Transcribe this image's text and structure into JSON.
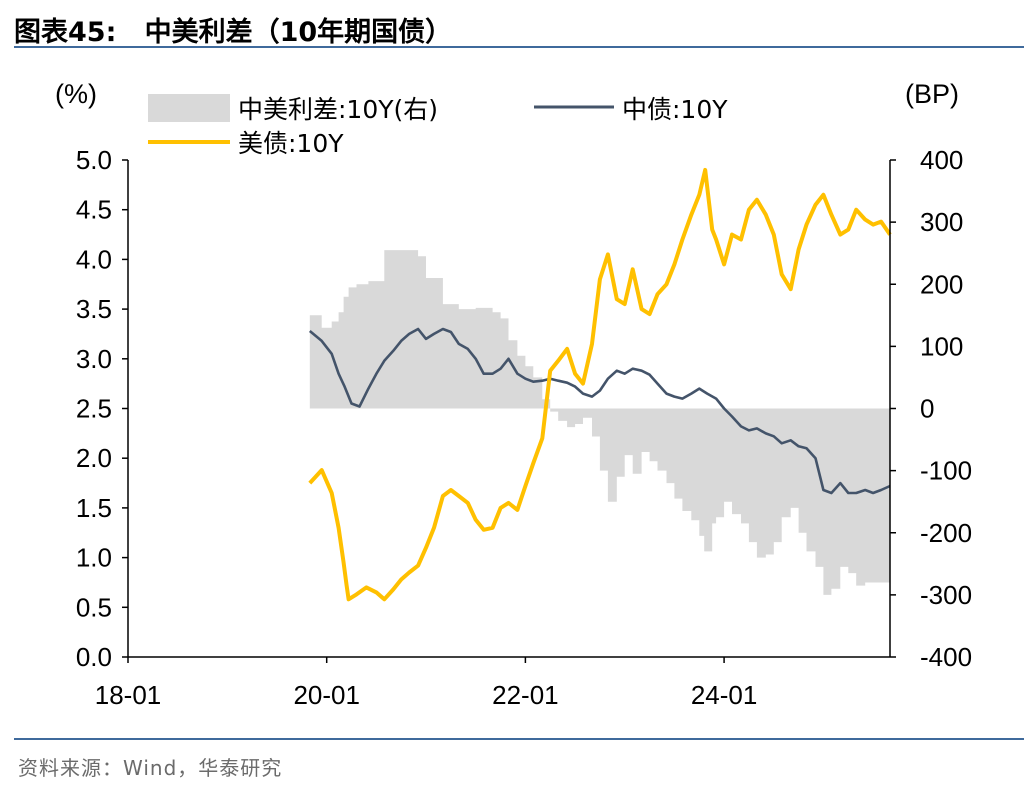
{
  "figure": {
    "title": "图表45:   中美利差（10年期国债）",
    "source": "资料来源：Wind，华泰研究"
  },
  "colors": {
    "spread_fill": "#d9d9d9",
    "cn_line": "#44546a",
    "us_line": "#ffc000",
    "rule": "#3f6a9c"
  },
  "chart_data": {
    "type": "line",
    "title": "中美利差（10年期国债）",
    "left_axis": {
      "unit_label": "(%)",
      "ylim": [
        0.0,
        5.0
      ],
      "ticks": [
        "5.0",
        "4.5",
        "4.0",
        "3.5",
        "3.0",
        "2.5",
        "2.0",
        "1.5",
        "1.0",
        "0.5",
        "0.0"
      ]
    },
    "right_axis": {
      "unit_label": "(BP)",
      "ylim": [
        -400,
        400
      ],
      "ticks": [
        "400",
        "300",
        "200",
        "100",
        "0",
        "-100",
        "-200",
        "-300",
        "-400"
      ]
    },
    "x_axis": {
      "range": [
        2018.0,
        2025.67
      ],
      "ticks": [
        {
          "label": "18-01",
          "x": 2018.0
        },
        {
          "label": "20-01",
          "x": 2020.0
        },
        {
          "label": "22-01",
          "x": 2022.0
        },
        {
          "label": "24-01",
          "x": 2024.0
        }
      ]
    },
    "legend": [
      {
        "label": "中美利差:10Y(右)",
        "kind": "area"
      },
      {
        "label": "中债:10Y",
        "kind": "line"
      },
      {
        "label": "美债:10Y",
        "kind": "line"
      }
    ],
    "series": [
      {
        "name": "中债:10Y",
        "axis": "left",
        "points": [
          [
            2019.83,
            3.28
          ],
          [
            2019.95,
            3.18
          ],
          [
            2020.05,
            3.05
          ],
          [
            2020.12,
            2.85
          ],
          [
            2020.18,
            2.72
          ],
          [
            2020.25,
            2.55
          ],
          [
            2020.33,
            2.52
          ],
          [
            2020.42,
            2.7
          ],
          [
            2020.5,
            2.85
          ],
          [
            2020.58,
            2.98
          ],
          [
            2020.67,
            3.08
          ],
          [
            2020.75,
            3.18
          ],
          [
            2020.83,
            3.25
          ],
          [
            2020.92,
            3.3
          ],
          [
            2021.0,
            3.2
          ],
          [
            2021.08,
            3.25
          ],
          [
            2021.17,
            3.3
          ],
          [
            2021.25,
            3.27
          ],
          [
            2021.33,
            3.15
          ],
          [
            2021.42,
            3.1
          ],
          [
            2021.5,
            3.0
          ],
          [
            2021.58,
            2.85
          ],
          [
            2021.67,
            2.85
          ],
          [
            2021.75,
            2.9
          ],
          [
            2021.83,
            3.0
          ],
          [
            2021.92,
            2.85
          ],
          [
            2022.0,
            2.8
          ],
          [
            2022.08,
            2.77
          ],
          [
            2022.17,
            2.78
          ],
          [
            2022.25,
            2.8
          ],
          [
            2022.33,
            2.78
          ],
          [
            2022.42,
            2.76
          ],
          [
            2022.5,
            2.72
          ],
          [
            2022.58,
            2.65
          ],
          [
            2022.67,
            2.62
          ],
          [
            2022.75,
            2.68
          ],
          [
            2022.83,
            2.8
          ],
          [
            2022.92,
            2.88
          ],
          [
            2023.0,
            2.85
          ],
          [
            2023.08,
            2.9
          ],
          [
            2023.17,
            2.88
          ],
          [
            2023.25,
            2.84
          ],
          [
            2023.33,
            2.75
          ],
          [
            2023.42,
            2.65
          ],
          [
            2023.5,
            2.62
          ],
          [
            2023.58,
            2.6
          ],
          [
            2023.67,
            2.65
          ],
          [
            2023.75,
            2.7
          ],
          [
            2023.83,
            2.65
          ],
          [
            2023.92,
            2.6
          ],
          [
            2024.0,
            2.5
          ],
          [
            2024.08,
            2.42
          ],
          [
            2024.17,
            2.32
          ],
          [
            2024.25,
            2.28
          ],
          [
            2024.33,
            2.3
          ],
          [
            2024.42,
            2.25
          ],
          [
            2024.5,
            2.22
          ],
          [
            2024.58,
            2.15
          ],
          [
            2024.67,
            2.18
          ],
          [
            2024.75,
            2.12
          ],
          [
            2024.83,
            2.1
          ],
          [
            2024.92,
            2.0
          ],
          [
            2025.0,
            1.68
          ],
          [
            2025.08,
            1.65
          ],
          [
            2025.17,
            1.75
          ],
          [
            2025.25,
            1.65
          ],
          [
            2025.33,
            1.65
          ],
          [
            2025.42,
            1.68
          ],
          [
            2025.5,
            1.65
          ],
          [
            2025.58,
            1.68
          ],
          [
            2025.67,
            1.72
          ]
        ]
      },
      {
        "name": "美债:10Y",
        "axis": "left",
        "points": [
          [
            2019.83,
            1.75
          ],
          [
            2019.95,
            1.88
          ],
          [
            2020.05,
            1.65
          ],
          [
            2020.12,
            1.3
          ],
          [
            2020.17,
            0.95
          ],
          [
            2020.2,
            0.72
          ],
          [
            2020.22,
            0.58
          ],
          [
            2020.3,
            0.63
          ],
          [
            2020.4,
            0.7
          ],
          [
            2020.5,
            0.65
          ],
          [
            2020.58,
            0.58
          ],
          [
            2020.67,
            0.68
          ],
          [
            2020.75,
            0.78
          ],
          [
            2020.83,
            0.85
          ],
          [
            2020.92,
            0.92
          ],
          [
            2021.0,
            1.1
          ],
          [
            2021.08,
            1.3
          ],
          [
            2021.17,
            1.62
          ],
          [
            2021.25,
            1.68
          ],
          [
            2021.33,
            1.62
          ],
          [
            2021.42,
            1.55
          ],
          [
            2021.5,
            1.38
          ],
          [
            2021.58,
            1.28
          ],
          [
            2021.67,
            1.3
          ],
          [
            2021.75,
            1.5
          ],
          [
            2021.83,
            1.55
          ],
          [
            2021.92,
            1.48
          ],
          [
            2022.0,
            1.72
          ],
          [
            2022.08,
            1.95
          ],
          [
            2022.17,
            2.2
          ],
          [
            2022.25,
            2.88
          ],
          [
            2022.33,
            2.98
          ],
          [
            2022.42,
            3.1
          ],
          [
            2022.5,
            2.85
          ],
          [
            2022.58,
            2.75
          ],
          [
            2022.67,
            3.15
          ],
          [
            2022.75,
            3.8
          ],
          [
            2022.83,
            4.05
          ],
          [
            2022.92,
            3.6
          ],
          [
            2023.0,
            3.55
          ],
          [
            2023.08,
            3.9
          ],
          [
            2023.17,
            3.5
          ],
          [
            2023.25,
            3.45
          ],
          [
            2023.33,
            3.65
          ],
          [
            2023.42,
            3.75
          ],
          [
            2023.5,
            3.95
          ],
          [
            2023.58,
            4.2
          ],
          [
            2023.67,
            4.45
          ],
          [
            2023.75,
            4.65
          ],
          [
            2023.81,
            4.9
          ],
          [
            2023.88,
            4.3
          ],
          [
            2023.92,
            4.2
          ],
          [
            2024.0,
            3.95
          ],
          [
            2024.08,
            4.25
          ],
          [
            2024.17,
            4.2
          ],
          [
            2024.25,
            4.5
          ],
          [
            2024.33,
            4.6
          ],
          [
            2024.42,
            4.45
          ],
          [
            2024.5,
            4.25
          ],
          [
            2024.58,
            3.85
          ],
          [
            2024.67,
            3.7
          ],
          [
            2024.75,
            4.1
          ],
          [
            2024.83,
            4.35
          ],
          [
            2024.92,
            4.55
          ],
          [
            2025.0,
            4.65
          ],
          [
            2025.08,
            4.45
          ],
          [
            2025.17,
            4.25
          ],
          [
            2025.25,
            4.3
          ],
          [
            2025.33,
            4.5
          ],
          [
            2025.42,
            4.4
          ],
          [
            2025.5,
            4.35
          ],
          [
            2025.58,
            4.38
          ],
          [
            2025.67,
            4.25
          ]
        ]
      },
      {
        "name": "中美利差:10Y(右)",
        "axis": "right",
        "kind": "area",
        "points": [
          [
            2019.83,
            150
          ],
          [
            2019.95,
            130
          ],
          [
            2020.05,
            140
          ],
          [
            2020.12,
            155
          ],
          [
            2020.17,
            180
          ],
          [
            2020.22,
            195
          ],
          [
            2020.3,
            200
          ],
          [
            2020.42,
            205
          ],
          [
            2020.58,
            255
          ],
          [
            2020.75,
            255
          ],
          [
            2020.92,
            245
          ],
          [
            2021.0,
            210
          ],
          [
            2021.17,
            168
          ],
          [
            2021.33,
            160
          ],
          [
            2021.5,
            162
          ],
          [
            2021.67,
            155
          ],
          [
            2021.75,
            145
          ],
          [
            2021.83,
            110
          ],
          [
            2021.92,
            85
          ],
          [
            2022.0,
            68
          ],
          [
            2022.08,
            50
          ],
          [
            2022.17,
            15
          ],
          [
            2022.25,
            -5
          ],
          [
            2022.33,
            -20
          ],
          [
            2022.42,
            -30
          ],
          [
            2022.5,
            -25
          ],
          [
            2022.58,
            -15
          ],
          [
            2022.67,
            -45
          ],
          [
            2022.75,
            -100
          ],
          [
            2022.83,
            -150
          ],
          [
            2022.92,
            -110
          ],
          [
            2023.0,
            -75
          ],
          [
            2023.08,
            -105
          ],
          [
            2023.17,
            -70
          ],
          [
            2023.25,
            -85
          ],
          [
            2023.33,
            -100
          ],
          [
            2023.42,
            -120
          ],
          [
            2023.5,
            -145
          ],
          [
            2023.58,
            -165
          ],
          [
            2023.67,
            -180
          ],
          [
            2023.75,
            -205
          ],
          [
            2023.8,
            -230
          ],
          [
            2023.88,
            -185
          ],
          [
            2023.92,
            -175
          ],
          [
            2024.0,
            -150
          ],
          [
            2024.08,
            -170
          ],
          [
            2024.17,
            -185
          ],
          [
            2024.25,
            -215
          ],
          [
            2024.33,
            -240
          ],
          [
            2024.42,
            -235
          ],
          [
            2024.5,
            -215
          ],
          [
            2024.58,
            -175
          ],
          [
            2024.67,
            -160
          ],
          [
            2024.75,
            -200
          ],
          [
            2024.83,
            -230
          ],
          [
            2024.92,
            -255
          ],
          [
            2025.0,
            -300
          ],
          [
            2025.08,
            -290
          ],
          [
            2025.17,
            -255
          ],
          [
            2025.25,
            -265
          ],
          [
            2025.33,
            -285
          ],
          [
            2025.42,
            -280
          ],
          [
            2025.5,
            -280
          ],
          [
            2025.58,
            -280
          ],
          [
            2025.67,
            -268
          ]
        ]
      }
    ]
  }
}
